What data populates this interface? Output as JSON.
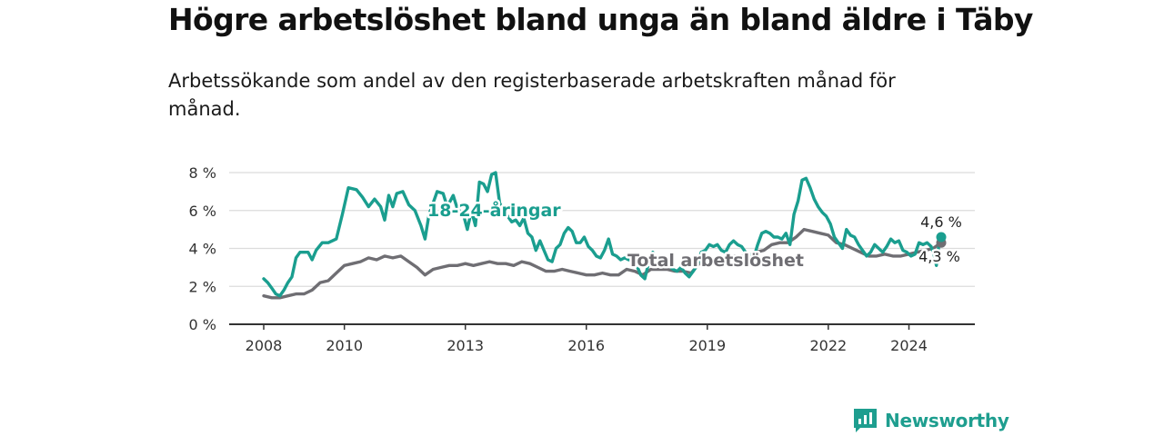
{
  "title": "Högre arbetslöshet bland unga än bland äldre i Täby",
  "subtitle": "Arbetssökande som andel av den registerbaserade arbetskraften månad för månad.",
  "brand": {
    "name": "Newsworthy",
    "color": "#1e9e8f"
  },
  "colors": {
    "youth": "#1a9e8f",
    "total": "#6f6e73",
    "grid": "#dcdcdc",
    "axis": "#333333"
  },
  "chart_data": {
    "type": "line",
    "title": "Högre arbetslöshet bland unga än bland äldre i Täby",
    "xlabel": "",
    "ylabel": "",
    "xlim": [
      2008,
      2024.8
    ],
    "ylim": [
      0,
      8
    ],
    "y_ticks": [
      0,
      2,
      4,
      6,
      8
    ],
    "y_tick_labels": [
      "0 %",
      "2 %",
      "4 %",
      "6 %",
      "8 %"
    ],
    "x_ticks": [
      2008,
      2010,
      2013,
      2016,
      2019,
      2022,
      2024
    ],
    "x_tick_labels": [
      "2008",
      "2010",
      "2013",
      "2016",
      "2019",
      "2022",
      "2024"
    ],
    "grid": true,
    "legend": "inline labels",
    "series": [
      {
        "name": "18-24-åringar",
        "color": "#1a9e8f",
        "end_label": "4,6 %",
        "points": [
          [
            2008.0,
            2.4
          ],
          [
            2008.1,
            2.2
          ],
          [
            2008.2,
            1.9
          ],
          [
            2008.3,
            1.6
          ],
          [
            2008.4,
            1.5
          ],
          [
            2008.5,
            1.8
          ],
          [
            2008.6,
            2.2
          ],
          [
            2008.7,
            2.5
          ],
          [
            2008.8,
            3.5
          ],
          [
            2008.9,
            3.8
          ],
          [
            2009.1,
            3.8
          ],
          [
            2009.2,
            3.4
          ],
          [
            2009.3,
            3.9
          ],
          [
            2009.45,
            4.3
          ],
          [
            2009.6,
            4.3
          ],
          [
            2009.8,
            4.5
          ],
          [
            2009.95,
            5.8
          ],
          [
            2010.1,
            7.2
          ],
          [
            2010.3,
            7.1
          ],
          [
            2010.45,
            6.7
          ],
          [
            2010.6,
            6.2
          ],
          [
            2010.75,
            6.6
          ],
          [
            2010.9,
            6.2
          ],
          [
            2011.0,
            5.5
          ],
          [
            2011.1,
            6.8
          ],
          [
            2011.2,
            6.2
          ],
          [
            2011.3,
            6.9
          ],
          [
            2011.45,
            7.0
          ],
          [
            2011.6,
            6.3
          ],
          [
            2011.75,
            6.0
          ],
          [
            2011.9,
            5.2
          ],
          [
            2012.0,
            4.5
          ],
          [
            2012.1,
            5.8
          ],
          [
            2012.2,
            6.4
          ],
          [
            2012.3,
            7.0
          ],
          [
            2012.45,
            6.9
          ],
          [
            2012.55,
            6.2
          ],
          [
            2012.7,
            6.8
          ],
          [
            2012.8,
            6.1
          ],
          [
            2012.95,
            5.8
          ],
          [
            2013.05,
            5.0
          ],
          [
            2013.15,
            6.0
          ],
          [
            2013.25,
            5.2
          ],
          [
            2013.35,
            7.5
          ],
          [
            2013.45,
            7.4
          ],
          [
            2013.55,
            7.0
          ],
          [
            2013.65,
            7.9
          ],
          [
            2013.75,
            8.0
          ],
          [
            2013.85,
            6.4
          ],
          [
            2013.95,
            6.0
          ],
          [
            2014.05,
            5.7
          ],
          [
            2014.15,
            5.4
          ],
          [
            2014.25,
            5.5
          ],
          [
            2014.35,
            5.2
          ],
          [
            2014.45,
            5.6
          ],
          [
            2014.55,
            4.8
          ],
          [
            2014.65,
            4.6
          ],
          [
            2014.75,
            3.9
          ],
          [
            2014.85,
            4.4
          ],
          [
            2014.95,
            3.9
          ],
          [
            2015.05,
            3.4
          ],
          [
            2015.15,
            3.3
          ],
          [
            2015.25,
            4.0
          ],
          [
            2015.35,
            4.2
          ],
          [
            2015.45,
            4.8
          ],
          [
            2015.55,
            5.1
          ],
          [
            2015.65,
            4.9
          ],
          [
            2015.75,
            4.3
          ],
          [
            2015.85,
            4.3
          ],
          [
            2015.95,
            4.6
          ],
          [
            2016.05,
            4.1
          ],
          [
            2016.15,
            3.9
          ],
          [
            2016.25,
            3.6
          ],
          [
            2016.35,
            3.5
          ],
          [
            2016.45,
            3.9
          ],
          [
            2016.55,
            4.5
          ],
          [
            2016.65,
            3.7
          ],
          [
            2016.75,
            3.6
          ],
          [
            2016.85,
            3.4
          ],
          [
            2016.95,
            3.5
          ],
          [
            2017.05,
            3.4
          ],
          [
            2017.15,
            3.4
          ],
          [
            2017.25,
            3.1
          ],
          [
            2017.35,
            2.6
          ],
          [
            2017.45,
            2.4
          ],
          [
            2017.55,
            3.3
          ],
          [
            2017.65,
            3.8
          ],
          [
            2017.75,
            3.4
          ],
          [
            2017.85,
            3.5
          ],
          [
            2017.95,
            3.3
          ],
          [
            2018.05,
            3.1
          ],
          [
            2018.15,
            2.9
          ],
          [
            2018.25,
            2.8
          ],
          [
            2018.35,
            3.0
          ],
          [
            2018.45,
            2.7
          ],
          [
            2018.55,
            2.5
          ],
          [
            2018.65,
            2.8
          ],
          [
            2018.75,
            3.1
          ],
          [
            2018.85,
            3.8
          ],
          [
            2018.95,
            3.9
          ],
          [
            2019.05,
            4.2
          ],
          [
            2019.15,
            4.1
          ],
          [
            2019.25,
            4.2
          ],
          [
            2019.35,
            3.9
          ],
          [
            2019.45,
            3.8
          ],
          [
            2019.55,
            4.2
          ],
          [
            2019.65,
            4.4
          ],
          [
            2019.75,
            4.2
          ],
          [
            2019.85,
            4.1
          ],
          [
            2019.95,
            3.8
          ],
          [
            2020.05,
            3.7
          ],
          [
            2020.15,
            3.5
          ],
          [
            2020.25,
            4.2
          ],
          [
            2020.35,
            4.8
          ],
          [
            2020.45,
            4.9
          ],
          [
            2020.55,
            4.8
          ],
          [
            2020.65,
            4.6
          ],
          [
            2020.75,
            4.6
          ],
          [
            2020.85,
            4.5
          ],
          [
            2020.95,
            4.8
          ],
          [
            2021.05,
            4.2
          ],
          [
            2021.15,
            5.8
          ],
          [
            2021.25,
            6.5
          ],
          [
            2021.35,
            7.6
          ],
          [
            2021.45,
            7.7
          ],
          [
            2021.55,
            7.2
          ],
          [
            2021.65,
            6.6
          ],
          [
            2021.75,
            6.2
          ],
          [
            2021.85,
            5.9
          ],
          [
            2021.95,
            5.7
          ],
          [
            2022.05,
            5.3
          ],
          [
            2022.15,
            4.6
          ],
          [
            2022.25,
            4.3
          ],
          [
            2022.35,
            4.0
          ],
          [
            2022.45,
            5.0
          ],
          [
            2022.55,
            4.7
          ],
          [
            2022.65,
            4.6
          ],
          [
            2022.75,
            4.2
          ],
          [
            2022.85,
            3.9
          ],
          [
            2022.95,
            3.6
          ],
          [
            2023.05,
            3.8
          ],
          [
            2023.15,
            4.2
          ],
          [
            2023.25,
            4.0
          ],
          [
            2023.35,
            3.8
          ],
          [
            2023.45,
            4.1
          ],
          [
            2023.55,
            4.5
          ],
          [
            2023.65,
            4.3
          ],
          [
            2023.75,
            4.4
          ],
          [
            2023.85,
            3.9
          ],
          [
            2023.95,
            3.8
          ],
          [
            2024.05,
            3.6
          ],
          [
            2024.15,
            3.7
          ],
          [
            2024.25,
            4.3
          ],
          [
            2024.35,
            4.2
          ],
          [
            2024.45,
            4.3
          ],
          [
            2024.55,
            4.1
          ],
          [
            2024.62,
            3.7
          ],
          [
            2024.68,
            3.1
          ],
          [
            2024.74,
            4.1
          ],
          [
            2024.8,
            4.6
          ]
        ]
      },
      {
        "name": "Total arbetslöshet",
        "color": "#6f6e73",
        "end_label": "4,3 %",
        "points": [
          [
            2008.0,
            1.5
          ],
          [
            2008.2,
            1.4
          ],
          [
            2008.4,
            1.4
          ],
          [
            2008.6,
            1.5
          ],
          [
            2008.8,
            1.6
          ],
          [
            2009.0,
            1.6
          ],
          [
            2009.2,
            1.8
          ],
          [
            2009.4,
            2.2
          ],
          [
            2009.6,
            2.3
          ],
          [
            2009.8,
            2.7
          ],
          [
            2010.0,
            3.1
          ],
          [
            2010.2,
            3.2
          ],
          [
            2010.4,
            3.3
          ],
          [
            2010.6,
            3.5
          ],
          [
            2010.8,
            3.4
          ],
          [
            2011.0,
            3.6
          ],
          [
            2011.2,
            3.5
          ],
          [
            2011.4,
            3.6
          ],
          [
            2011.6,
            3.3
          ],
          [
            2011.8,
            3.0
          ],
          [
            2012.0,
            2.6
          ],
          [
            2012.2,
            2.9
          ],
          [
            2012.4,
            3.0
          ],
          [
            2012.6,
            3.1
          ],
          [
            2012.8,
            3.1
          ],
          [
            2013.0,
            3.2
          ],
          [
            2013.2,
            3.1
          ],
          [
            2013.4,
            3.2
          ],
          [
            2013.6,
            3.3
          ],
          [
            2013.8,
            3.2
          ],
          [
            2014.0,
            3.2
          ],
          [
            2014.2,
            3.1
          ],
          [
            2014.4,
            3.3
          ],
          [
            2014.6,
            3.2
          ],
          [
            2014.8,
            3.0
          ],
          [
            2015.0,
            2.8
          ],
          [
            2015.2,
            2.8
          ],
          [
            2015.4,
            2.9
          ],
          [
            2015.6,
            2.8
          ],
          [
            2015.8,
            2.7
          ],
          [
            2016.0,
            2.6
          ],
          [
            2016.2,
            2.6
          ],
          [
            2016.4,
            2.7
          ],
          [
            2016.6,
            2.6
          ],
          [
            2016.8,
            2.6
          ],
          [
            2017.0,
            2.9
          ],
          [
            2017.2,
            2.8
          ],
          [
            2017.4,
            2.6
          ],
          [
            2017.6,
            2.9
          ],
          [
            2017.8,
            2.9
          ],
          [
            2018.0,
            2.9
          ],
          [
            2018.2,
            2.8
          ],
          [
            2018.4,
            2.8
          ],
          [
            2018.6,
            2.7
          ],
          [
            2018.8,
            3.2
          ],
          [
            2019.0,
            3.4
          ],
          [
            2019.2,
            3.5
          ],
          [
            2019.4,
            3.5
          ],
          [
            2019.6,
            3.6
          ],
          [
            2019.8,
            3.6
          ],
          [
            2020.0,
            3.6
          ],
          [
            2020.2,
            3.8
          ],
          [
            2020.4,
            3.9
          ],
          [
            2020.6,
            4.2
          ],
          [
            2020.8,
            4.3
          ],
          [
            2021.0,
            4.3
          ],
          [
            2021.2,
            4.6
          ],
          [
            2021.4,
            5.0
          ],
          [
            2021.6,
            4.9
          ],
          [
            2021.8,
            4.8
          ],
          [
            2022.0,
            4.7
          ],
          [
            2022.2,
            4.3
          ],
          [
            2022.4,
            4.2
          ],
          [
            2022.6,
            4.0
          ],
          [
            2022.8,
            3.8
          ],
          [
            2023.0,
            3.6
          ],
          [
            2023.2,
            3.6
          ],
          [
            2023.4,
            3.7
          ],
          [
            2023.6,
            3.6
          ],
          [
            2023.8,
            3.6
          ],
          [
            2024.0,
            3.7
          ],
          [
            2024.2,
            3.8
          ],
          [
            2024.4,
            3.9
          ],
          [
            2024.6,
            4.0
          ],
          [
            2024.8,
            4.3
          ]
        ]
      }
    ]
  }
}
